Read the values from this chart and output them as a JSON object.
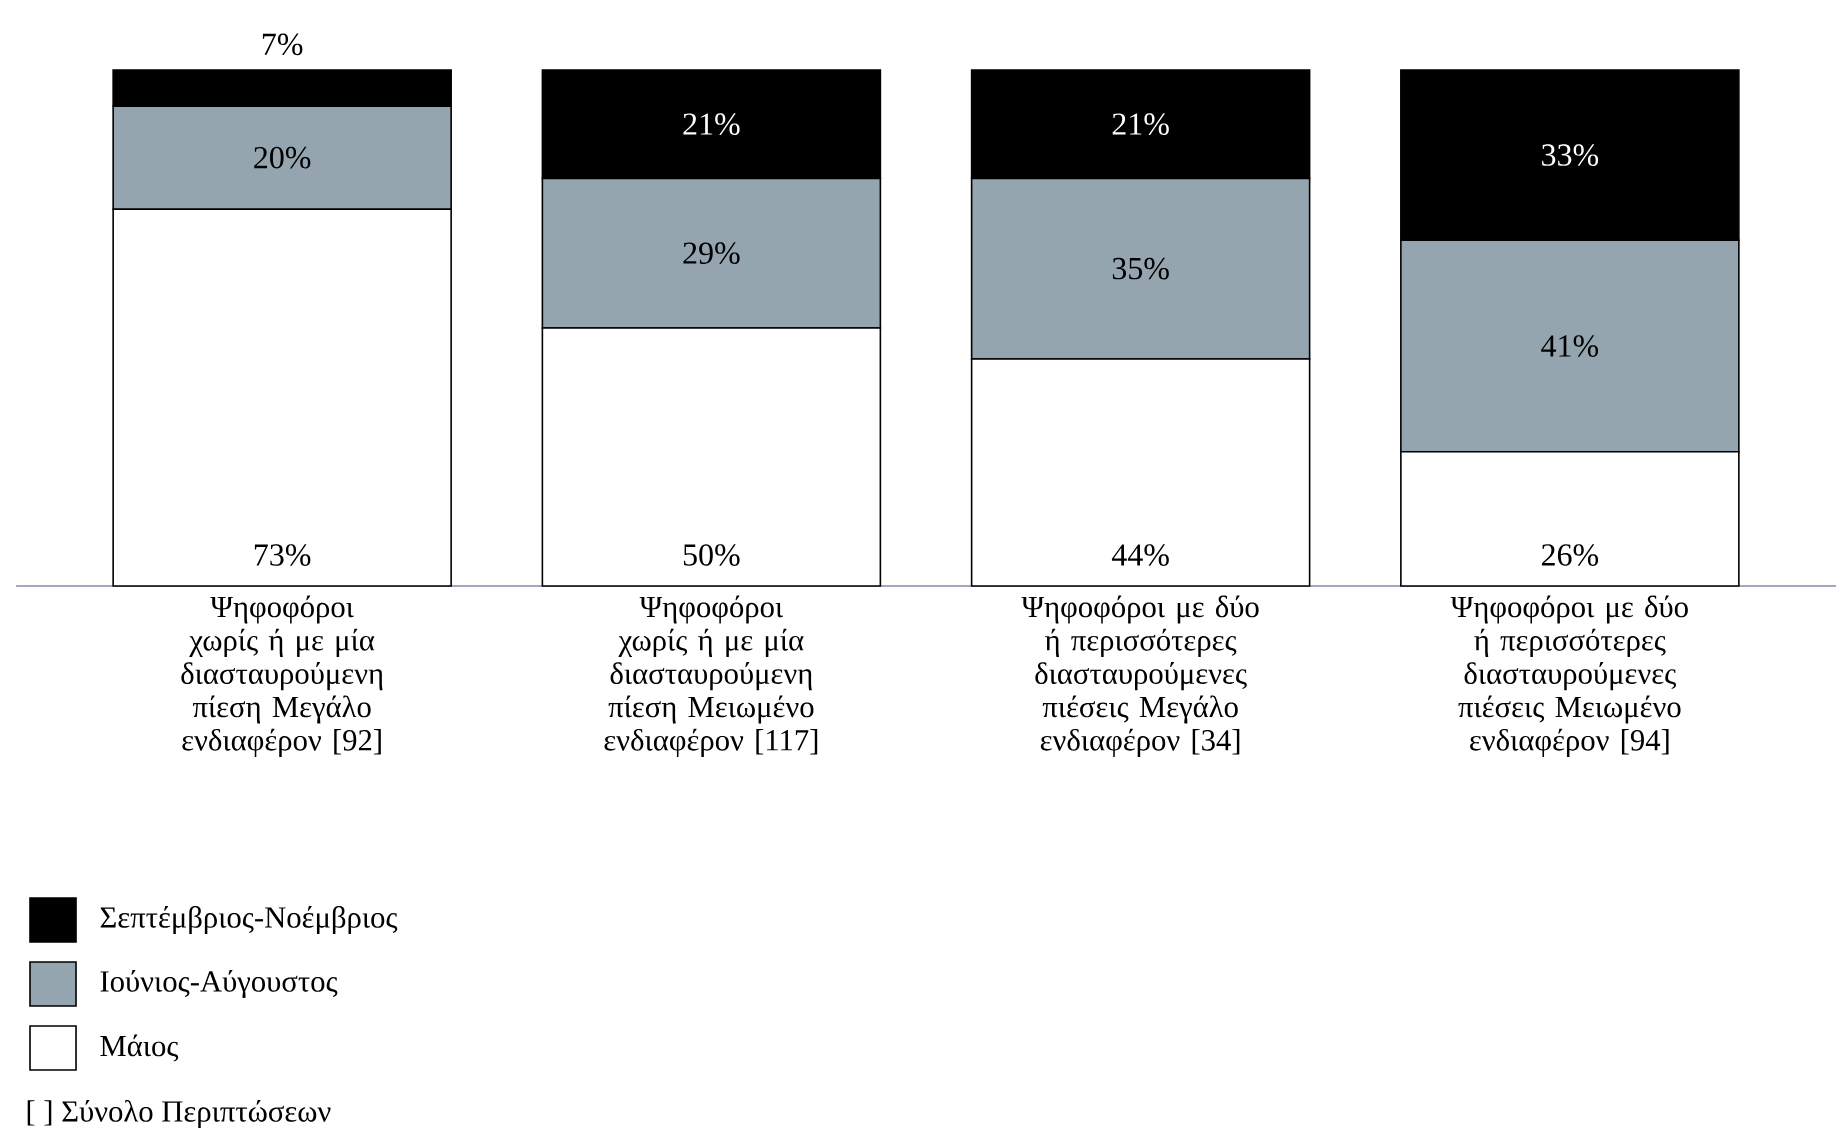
{
  "chart_data": {
    "type": "bar",
    "stacked": true,
    "categories": [
      "Ψηφοφόροι χωρίς ή με μία διασταυρούμενη πίεση Μεγάλο ενδιαφέρον [92]",
      "Ψηφοφόροι χωρίς ή με μία διασταυρούμενη πίεση Μειωμένο ενδιαφέρον [117]",
      "Ψηφοφόροι με δύο ή περισσότερες διασταυρούμενες πιέσεις Μεγάλο ενδιαφέρον [34]",
      "Ψηφοφόροι με δύο ή περισσότερες διασταυρούμενες πιέσεις Μειωμένο ενδιαφέρον [94]"
    ],
    "series": [
      {
        "name": "Μάιος",
        "color": "#ffffff",
        "values": [
          73,
          50,
          44,
          26
        ],
        "value_labels": [
          "73%",
          "50%",
          "44%",
          "26%"
        ]
      },
      {
        "name": "Ιούνιος-Αύγουστος",
        "color": "#95a5b0",
        "values": [
          20,
          29,
          35,
          41
        ],
        "value_labels": [
          "20%",
          "29%",
          "35%",
          "41%"
        ]
      },
      {
        "name": "Σεπτέμβριος-Νοέμβριος",
        "color": "#000000",
        "values": [
          7,
          21,
          21,
          33
        ],
        "value_labels": [
          "7%",
          "21%",
          "21%",
          "33%"
        ]
      }
    ],
    "legend": "bottom",
    "annotations": [
      "[ ] Σύνολο Περιπτώσεων"
    ]
  }
}
